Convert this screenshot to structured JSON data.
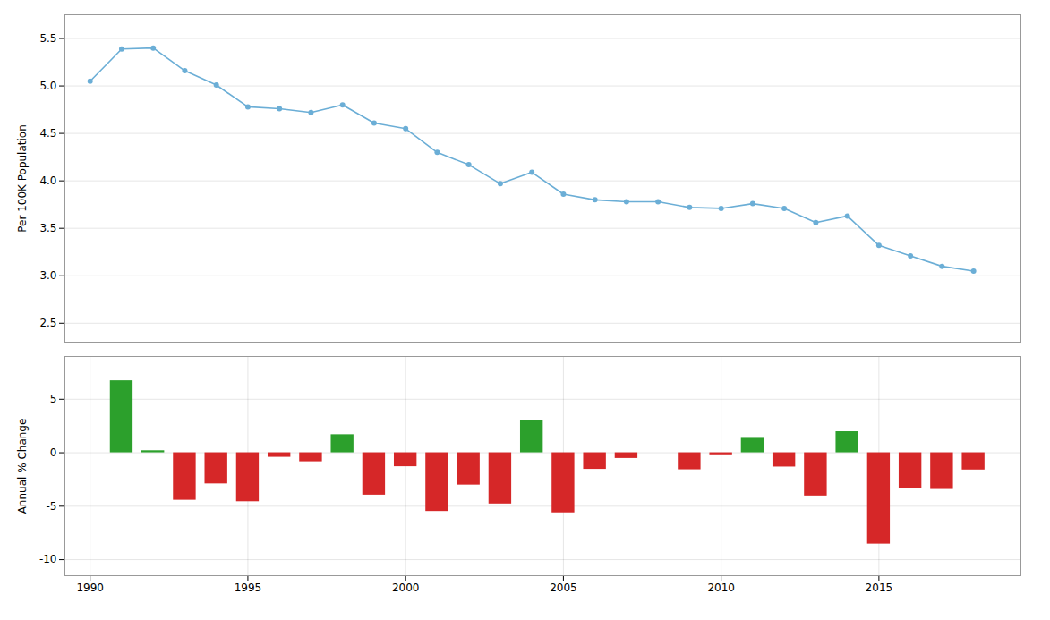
{
  "chart_data": [
    {
      "type": "line",
      "x": [
        1990,
        1991,
        1992,
        1993,
        1994,
        1995,
        1996,
        1997,
        1998,
        1999,
        2000,
        2001,
        2002,
        2003,
        2004,
        2005,
        2006,
        2007,
        2008,
        2009,
        2010,
        2011,
        2012,
        2013,
        2014,
        2015,
        2016,
        2017,
        2018
      ],
      "values": [
        5.05,
        5.39,
        5.4,
        5.16,
        5.01,
        4.78,
        4.76,
        4.72,
        4.8,
        4.61,
        4.55,
        4.3,
        4.17,
        3.97,
        4.09,
        3.86,
        3.8,
        3.78,
        3.78,
        3.72,
        3.71,
        3.76,
        3.71,
        3.56,
        3.63,
        3.32,
        3.21,
        3.1,
        3.05
      ],
      "color": "#6baed6",
      "marker": "circle",
      "line_style": "solid",
      "ylabel": "Per 100K Population",
      "xlim": [
        1989.2,
        2019.5
      ],
      "ylim": [
        2.3,
        5.75
      ],
      "yticks": [
        2.5,
        {
          "value": 3.0,
          "label": "3.0"
        },
        3.5,
        {
          "value": 4.0,
          "label": "4.0"
        },
        4.5,
        {
          "value": 5.0,
          "label": "5.0"
        },
        5.5
      ],
      "grid": true,
      "tick_labels": "y"
    },
    {
      "type": "bar",
      "x": [
        1991,
        1992,
        1993,
        1994,
        1995,
        1996,
        1997,
        1998,
        1999,
        2000,
        2001,
        2002,
        2003,
        2004,
        2005,
        2006,
        2007,
        2008,
        2009,
        2010,
        2011,
        2012,
        2013,
        2014,
        2015,
        2016,
        2017,
        2018
      ],
      "values": [
        6.73,
        0.19,
        -4.44,
        -2.91,
        -4.58,
        -0.42,
        -0.84,
        1.69,
        -3.96,
        -1.3,
        -5.49,
        -3.02,
        -4.79,
        3.02,
        -5.62,
        -1.55,
        -0.53,
        0.0,
        -1.59,
        -0.27,
        1.35,
        -1.33,
        -4.04,
        1.97,
        -8.54,
        -3.32,
        -3.43,
        -1.61
      ],
      "colors": [
        "#2ca02c",
        "#2ca02c",
        "#d62728",
        "#d62728",
        "#d62728",
        "#d62728",
        "#d62728",
        "#2ca02c",
        "#d62728",
        "#d62728",
        "#d62728",
        "#d62728",
        "#d62728",
        "#2ca02c",
        "#d62728",
        "#d62728",
        "#d62728",
        "#2ca02c",
        "#d62728",
        "#d62728",
        "#2ca02c",
        "#d62728",
        "#d62728",
        "#2ca02c",
        "#d62728",
        "#d62728",
        "#d62728",
        "#d62728"
      ],
      "ylabel": "Annual % Change",
      "xlim": [
        1989.2,
        2019.5
      ],
      "ylim": [
        -11.5,
        9.0
      ],
      "yticks": [
        -10,
        -5,
        0,
        5
      ],
      "xticks": [
        1990,
        1995,
        2000,
        2005,
        2010,
        2015
      ],
      "grid": true
    }
  ]
}
